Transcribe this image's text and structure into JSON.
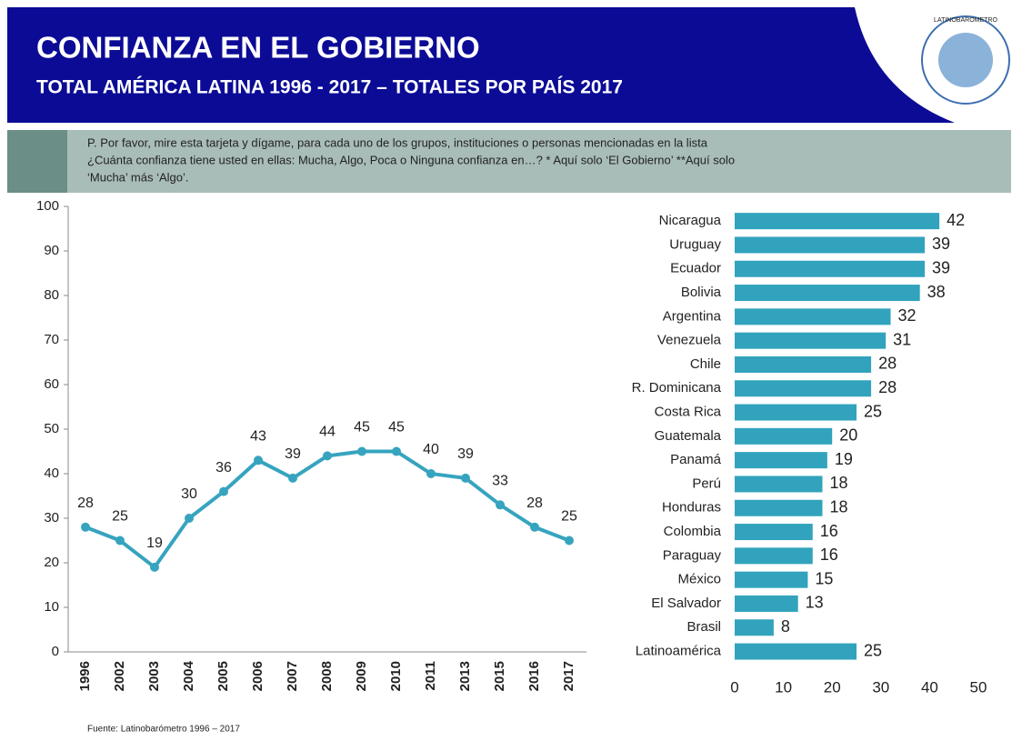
{
  "header": {
    "title": "CONFIANZA EN EL GOBIERNO",
    "subtitle": "TOTAL AMÉRICA LATINA 1996 - 2017 – TOTALES POR PAÍS 2017",
    "logo_text": "LATINOBARÓMETRO"
  },
  "question": [
    "P. Por favor, mire esta tarjeta y dígame, para cada uno de los grupos, instituciones o personas mencionadas en la lista",
    "¿Cuánta confianza tiene usted en ellas: Mucha, Algo, Poca o Ninguna confianza en…? * Aquí solo ‘El Gobierno’ **Aquí solo",
    "‘Mucha’ más ‘Algo’."
  ],
  "source": "Fuente: Latinobarómetro 1996 – 2017",
  "chart_data": [
    {
      "type": "line",
      "color": "#36a4bf",
      "categories": [
        "1996",
        "2002",
        "2003",
        "2004",
        "2005",
        "2006",
        "2007",
        "2008",
        "2009",
        "2010",
        "2011",
        "2013",
        "2015",
        "2016",
        "2017"
      ],
      "values": [
        28,
        25,
        19,
        30,
        36,
        43,
        39,
        44,
        45,
        45,
        40,
        39,
        33,
        28,
        25
      ],
      "ylim": [
        0,
        100
      ],
      "yticks": [
        0,
        10,
        20,
        30,
        40,
        50,
        60,
        70,
        80,
        90,
        100
      ]
    },
    {
      "type": "bar",
      "orientation": "horizontal",
      "color": "#31a3bd",
      "categories": [
        "Nicaragua",
        "Uruguay",
        "Ecuador",
        "Bolivia",
        "Argentina",
        "Venezuela",
        "Chile",
        "R. Dominicana",
        "Costa Rica",
        "Guatemala",
        "Panamá",
        "Perú",
        "Honduras",
        "Colombia",
        "Paraguay",
        "México",
        "El Salvador",
        "Brasil",
        "Latinoamérica"
      ],
      "values": [
        42,
        39,
        39,
        38,
        32,
        31,
        28,
        28,
        25,
        20,
        19,
        18,
        18,
        16,
        16,
        15,
        13,
        8,
        25
      ],
      "xlim": [
        0,
        50
      ],
      "xticks": [
        0,
        10,
        20,
        30,
        40,
        50
      ]
    }
  ]
}
